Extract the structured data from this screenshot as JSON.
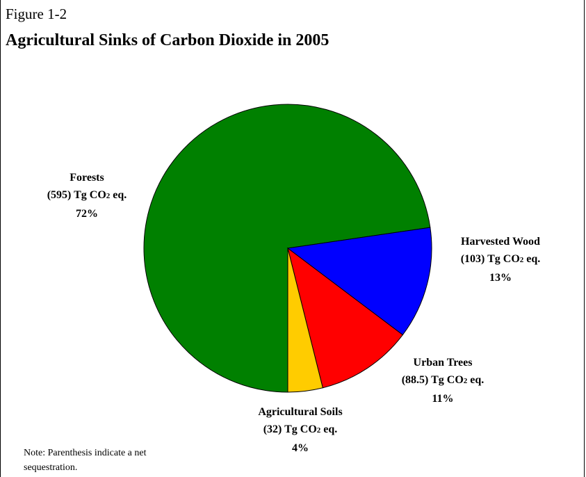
{
  "figure_label": "Figure 1-2",
  "title": "Agricultural Sinks of Carbon Dioxide in 2005",
  "note": "Note: Parenthesis indicate a net sequestration.",
  "chart_data": {
    "type": "pie",
    "title": "Agricultural Sinks of Carbon Dioxide in 2005",
    "unit": "Tg CO2 eq.",
    "slices": [
      {
        "name": "Forests",
        "value": 595,
        "value_label": "(595) Tg CO",
        "unit_sub": "2",
        "unit_tail": " eq.",
        "percent": 72,
        "percent_label": "72%",
        "color": "#008000"
      },
      {
        "name": "Harvested Wood",
        "value": 103,
        "value_label": "(103) Tg CO",
        "unit_sub": "2",
        "unit_tail": " eq.",
        "percent": 13,
        "percent_label": "13%",
        "color": "#0000ff"
      },
      {
        "name": "Urban Trees",
        "value": 88.5,
        "value_label": "(88.5) Tg CO",
        "unit_sub": "2",
        "unit_tail": " eq.",
        "percent": 11,
        "percent_label": "11%",
        "color": "#ff0000"
      },
      {
        "name": "Agricultural Soils",
        "value": 32,
        "value_label": "(32) Tg CO",
        "unit_sub": "2",
        "unit_tail": " eq.",
        "percent": 4,
        "percent_label": "4%",
        "color": "#ffcc00"
      }
    ]
  }
}
